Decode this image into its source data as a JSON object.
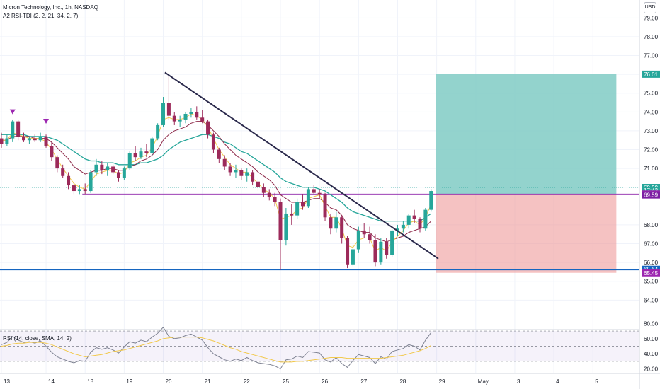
{
  "header": {
    "title": "Micron Technology, Inc., 1h, NASDAQ",
    "indicator": "A2 RSI-TDI (2, 2, 21, 34, 2, 7)",
    "currency": "USD"
  },
  "rsi_panel": {
    "label": "RSI (14, close, SMA, 14, 2)",
    "ticks": [
      "80.00",
      "60.00",
      "40.00",
      "20.00"
    ]
  },
  "price_tags": [
    {
      "text": "76.01",
      "value": 76.01,
      "color": "#26a69a"
    },
    {
      "text": "69.99",
      "value": 69.99,
      "color": "#26a69a"
    },
    {
      "text": "17:43",
      "value": 69.84,
      "color": "#26a69a"
    },
    {
      "text": "69.64",
      "value": 69.64,
      "color": "#9c27b0"
    },
    {
      "text": "69.59",
      "value": 69.59,
      "color": "#7b1fa2"
    },
    {
      "text": "65.64",
      "value": 65.64,
      "color": "#1565c0"
    },
    {
      "text": "65.45",
      "value": 65.45,
      "color": "#9c27b0"
    }
  ],
  "colors": {
    "up": "#26a69a",
    "down": "#9c2a5a",
    "ema_fast": "#f2c94c",
    "ema_mid": "#8e2a4a",
    "ema_slow": "#26a69a",
    "support": "#1565c0",
    "resistance": "#8e24aa",
    "trendline": "#2b2a4c",
    "target_zone": "#80cbc4",
    "stop_zone": "#ef9a9a",
    "rsi": "#7e8292",
    "rsi_ma": "#f2c94c",
    "signal": "#9c27b0"
  },
  "chart_data": {
    "type": "candlestick",
    "title": "Micron Technology, Inc., 1h, NASDAQ",
    "y_axis": {
      "ticks": [
        "79.00",
        "78.00",
        "77.00",
        "76.00",
        "75.00",
        "74.00",
        "73.00",
        "72.00",
        "71.00",
        "70.00",
        "68.00",
        "67.00",
        "66.00",
        "65.00",
        "64.00"
      ],
      "range": [
        63.4,
        79.2
      ]
    },
    "x_axis": {
      "labels": [
        "13",
        "14",
        "18",
        "19",
        "20",
        "21",
        "22",
        "25",
        "26",
        "27",
        "28",
        "29",
        "May",
        "3",
        "4",
        "5"
      ],
      "index_positions": [
        0,
        8,
        15,
        22,
        29,
        36,
        43,
        50,
        57,
        64,
        71,
        78,
        85,
        92,
        99,
        106
      ]
    },
    "candles": [
      {
        "o": 72.6,
        "h": 72.9,
        "l": 72.1,
        "c": 72.3
      },
      {
        "o": 72.3,
        "h": 72.8,
        "l": 72.2,
        "c": 72.6
      },
      {
        "o": 72.6,
        "h": 73.6,
        "l": 72.4,
        "c": 73.5
      },
      {
        "o": 73.5,
        "h": 73.6,
        "l": 72.5,
        "c": 72.7
      },
      {
        "o": 72.7,
        "h": 72.9,
        "l": 72.4,
        "c": 72.5
      },
      {
        "o": 72.5,
        "h": 72.7,
        "l": 72.3,
        "c": 72.6
      },
      {
        "o": 72.6,
        "h": 72.8,
        "l": 72.4,
        "c": 72.5
      },
      {
        "o": 72.5,
        "h": 72.9,
        "l": 72.4,
        "c": 72.7
      },
      {
        "o": 72.7,
        "h": 72.8,
        "l": 72.1,
        "c": 72.2
      },
      {
        "o": 72.2,
        "h": 72.4,
        "l": 71.4,
        "c": 71.6
      },
      {
        "o": 71.6,
        "h": 71.7,
        "l": 70.8,
        "c": 71.0
      },
      {
        "o": 71.0,
        "h": 71.2,
        "l": 70.5,
        "c": 70.6
      },
      {
        "o": 70.6,
        "h": 70.8,
        "l": 69.9,
        "c": 70.1
      },
      {
        "o": 70.1,
        "h": 70.3,
        "l": 69.6,
        "c": 69.8
      },
      {
        "o": 69.8,
        "h": 70.1,
        "l": 69.6,
        "c": 69.9
      },
      {
        "o": 69.9,
        "h": 70.2,
        "l": 69.6,
        "c": 69.8
      },
      {
        "o": 69.8,
        "h": 70.9,
        "l": 69.7,
        "c": 70.8
      },
      {
        "o": 70.8,
        "h": 71.5,
        "l": 70.6,
        "c": 71.2
      },
      {
        "o": 71.2,
        "h": 71.4,
        "l": 70.7,
        "c": 70.9
      },
      {
        "o": 70.9,
        "h": 71.3,
        "l": 70.6,
        "c": 71.1
      },
      {
        "o": 71.1,
        "h": 71.2,
        "l": 70.7,
        "c": 70.8
      },
      {
        "o": 70.8,
        "h": 70.9,
        "l": 70.3,
        "c": 70.5
      },
      {
        "o": 70.5,
        "h": 71.1,
        "l": 70.4,
        "c": 71.0
      },
      {
        "o": 71.0,
        "h": 71.9,
        "l": 70.9,
        "c": 71.8
      },
      {
        "o": 71.8,
        "h": 72.2,
        "l": 71.4,
        "c": 71.6
      },
      {
        "o": 71.6,
        "h": 72.1,
        "l": 71.5,
        "c": 71.9
      },
      {
        "o": 71.9,
        "h": 72.3,
        "l": 71.6,
        "c": 71.8
      },
      {
        "o": 71.8,
        "h": 72.7,
        "l": 71.7,
        "c": 72.6
      },
      {
        "o": 72.6,
        "h": 73.4,
        "l": 72.5,
        "c": 73.3
      },
      {
        "o": 73.3,
        "h": 74.8,
        "l": 73.2,
        "c": 74.5
      },
      {
        "o": 74.5,
        "h": 76.0,
        "l": 73.6,
        "c": 73.8
      },
      {
        "o": 73.8,
        "h": 74.0,
        "l": 73.3,
        "c": 73.5
      },
      {
        "o": 73.5,
        "h": 73.8,
        "l": 73.2,
        "c": 73.6
      },
      {
        "o": 73.6,
        "h": 74.0,
        "l": 73.4,
        "c": 73.9
      },
      {
        "o": 73.9,
        "h": 74.2,
        "l": 73.7,
        "c": 74.0
      },
      {
        "o": 74.0,
        "h": 74.3,
        "l": 73.6,
        "c": 73.7
      },
      {
        "o": 73.7,
        "h": 74.1,
        "l": 73.4,
        "c": 73.5
      },
      {
        "o": 73.5,
        "h": 73.6,
        "l": 72.6,
        "c": 72.8
      },
      {
        "o": 72.8,
        "h": 72.9,
        "l": 71.8,
        "c": 72.0
      },
      {
        "o": 72.0,
        "h": 72.1,
        "l": 71.3,
        "c": 71.5
      },
      {
        "o": 71.5,
        "h": 71.7,
        "l": 70.9,
        "c": 71.1
      },
      {
        "o": 71.1,
        "h": 71.3,
        "l": 70.6,
        "c": 70.8
      },
      {
        "o": 70.8,
        "h": 71.2,
        "l": 70.5,
        "c": 70.9
      },
      {
        "o": 70.9,
        "h": 71.0,
        "l": 70.4,
        "c": 70.6
      },
      {
        "o": 70.6,
        "h": 71.0,
        "l": 70.3,
        "c": 70.8
      },
      {
        "o": 70.8,
        "h": 70.9,
        "l": 70.1,
        "c": 70.3
      },
      {
        "o": 70.3,
        "h": 70.5,
        "l": 69.8,
        "c": 70.0
      },
      {
        "o": 70.0,
        "h": 70.2,
        "l": 69.5,
        "c": 69.7
      },
      {
        "o": 69.7,
        "h": 69.9,
        "l": 69.3,
        "c": 69.5
      },
      {
        "o": 69.5,
        "h": 69.7,
        "l": 69.0,
        "c": 69.2
      },
      {
        "o": 69.2,
        "h": 69.4,
        "l": 65.6,
        "c": 67.2
      },
      {
        "o": 67.2,
        "h": 68.9,
        "l": 66.9,
        "c": 68.6
      },
      {
        "o": 68.6,
        "h": 69.1,
        "l": 68.0,
        "c": 68.5
      },
      {
        "o": 68.5,
        "h": 69.4,
        "l": 68.3,
        "c": 69.2
      },
      {
        "o": 69.2,
        "h": 69.6,
        "l": 68.8,
        "c": 69.0
      },
      {
        "o": 69.0,
        "h": 70.0,
        "l": 68.9,
        "c": 69.9
      },
      {
        "o": 69.9,
        "h": 70.1,
        "l": 69.6,
        "c": 69.7
      },
      {
        "o": 69.7,
        "h": 69.9,
        "l": 69.4,
        "c": 69.6
      },
      {
        "o": 69.6,
        "h": 69.7,
        "l": 68.2,
        "c": 68.4
      },
      {
        "o": 68.4,
        "h": 68.6,
        "l": 67.5,
        "c": 67.8
      },
      {
        "o": 67.8,
        "h": 68.7,
        "l": 67.6,
        "c": 68.4
      },
      {
        "o": 68.4,
        "h": 68.5,
        "l": 67.0,
        "c": 67.3
      },
      {
        "o": 67.3,
        "h": 67.4,
        "l": 65.7,
        "c": 65.9
      },
      {
        "o": 65.9,
        "h": 66.9,
        "l": 65.8,
        "c": 66.7
      },
      {
        "o": 66.7,
        "h": 67.9,
        "l": 66.5,
        "c": 67.7
      },
      {
        "o": 67.7,
        "h": 68.1,
        "l": 67.3,
        "c": 67.5
      },
      {
        "o": 67.5,
        "h": 67.9,
        "l": 67.0,
        "c": 67.2
      },
      {
        "o": 67.2,
        "h": 67.5,
        "l": 65.8,
        "c": 66.0
      },
      {
        "o": 66.0,
        "h": 67.3,
        "l": 65.9,
        "c": 67.1
      },
      {
        "o": 67.1,
        "h": 67.3,
        "l": 66.2,
        "c": 66.4
      },
      {
        "o": 66.4,
        "h": 67.8,
        "l": 66.3,
        "c": 67.7
      },
      {
        "o": 67.7,
        "h": 68.0,
        "l": 67.4,
        "c": 67.8
      },
      {
        "o": 67.8,
        "h": 68.2,
        "l": 67.6,
        "c": 68.0
      },
      {
        "o": 68.0,
        "h": 68.6,
        "l": 67.8,
        "c": 68.5
      },
      {
        "o": 68.5,
        "h": 68.8,
        "l": 68.1,
        "c": 68.3
      },
      {
        "o": 68.3,
        "h": 68.4,
        "l": 67.6,
        "c": 67.8
      },
      {
        "o": 67.8,
        "h": 68.9,
        "l": 67.7,
        "c": 68.8
      },
      {
        "o": 68.8,
        "h": 69.9,
        "l": 68.7,
        "c": 69.8
      }
    ],
    "ema_fast": [
      72.5,
      72.5,
      72.9,
      72.8,
      72.7,
      72.6,
      72.6,
      72.6,
      72.4,
      72.0,
      71.5,
      71.0,
      70.6,
      70.2,
      70.0,
      69.9,
      70.3,
      70.7,
      70.8,
      70.9,
      70.9,
      70.7,
      70.8,
      71.3,
      71.4,
      71.6,
      71.7,
      72.1,
      72.7,
      73.6,
      73.7,
      73.6,
      73.6,
      73.7,
      73.9,
      73.8,
      73.6,
      73.2,
      72.6,
      72.0,
      71.6,
      71.2,
      71.0,
      70.8,
      70.8,
      70.5,
      70.2,
      69.9,
      69.7,
      69.4,
      68.3,
      68.4,
      68.5,
      68.8,
      68.9,
      69.4,
      69.5,
      69.6,
      69.0,
      68.4,
      68.4,
      67.8,
      66.9,
      66.8,
      67.2,
      67.3,
      67.3,
      66.6,
      66.8,
      66.6,
      67.1,
      67.4,
      67.7,
      68.1,
      68.2,
      68.0,
      68.4,
      69.1
    ],
    "ema_mid": [
      72.5,
      72.5,
      72.7,
      72.7,
      72.7,
      72.7,
      72.6,
      72.6,
      72.6,
      72.4,
      72.1,
      71.8,
      71.5,
      71.1,
      70.9,
      70.7,
      70.8,
      70.9,
      70.9,
      71.0,
      71.0,
      70.9,
      70.9,
      71.1,
      71.2,
      71.4,
      71.5,
      71.7,
      72.0,
      72.5,
      72.8,
      73.0,
      73.1,
      73.2,
      73.4,
      73.5,
      73.5,
      73.3,
      73.0,
      72.7,
      72.3,
      72.0,
      71.7,
      71.5,
      71.3,
      71.1,
      70.8,
      70.6,
      70.4,
      70.1,
      69.6,
      69.4,
      69.2,
      69.2,
      69.2,
      69.3,
      69.4,
      69.4,
      69.2,
      68.9,
      68.8,
      68.5,
      68.0,
      67.8,
      67.7,
      67.6,
      67.6,
      67.3,
      67.2,
      67.1,
      67.2,
      67.3,
      67.4,
      67.6,
      67.7,
      67.8,
      67.9,
      68.2
    ],
    "ema_slow": [
      72.8,
      72.8,
      72.8,
      72.8,
      72.8,
      72.7,
      72.7,
      72.7,
      72.7,
      72.6,
      72.5,
      72.3,
      72.1,
      71.9,
      71.7,
      71.5,
      71.4,
      71.4,
      71.3,
      71.3,
      71.3,
      71.2,
      71.2,
      71.2,
      71.2,
      71.3,
      71.3,
      71.4,
      71.5,
      71.7,
      72.0,
      72.2,
      72.4,
      72.5,
      72.6,
      72.7,
      72.8,
      72.8,
      72.7,
      72.6,
      72.4,
      72.3,
      72.1,
      71.9,
      71.8,
      71.6,
      71.4,
      71.2,
      71.0,
      70.8,
      70.5,
      70.3,
      70.2,
      70.1,
      70.0,
      70.0,
      70.0,
      69.9,
      69.8,
      69.6,
      69.4,
      69.2,
      68.9,
      68.7,
      68.6,
      68.5,
      68.4,
      68.3,
      68.2,
      68.2,
      68.2,
      68.2,
      68.2,
      68.2,
      68.2,
      68.2,
      68.4,
      68.6
    ],
    "rsi": [
      52,
      55,
      63,
      58,
      55,
      56,
      54,
      57,
      50,
      42,
      36,
      33,
      30,
      28,
      31,
      30,
      42,
      48,
      46,
      48,
      45,
      41,
      49,
      56,
      54,
      58,
      56,
      62,
      67,
      75,
      63,
      60,
      61,
      64,
      66,
      62,
      58,
      48,
      40,
      36,
      32,
      30,
      33,
      31,
      35,
      31,
      28,
      27,
      26,
      24,
      20,
      32,
      33,
      37,
      35,
      43,
      42,
      41,
      32,
      29,
      35,
      27,
      22,
      31,
      39,
      37,
      35,
      27,
      36,
      33,
      43,
      45,
      47,
      52,
      50,
      45,
      58,
      68
    ],
    "rsi_ma": [
      50,
      51,
      53,
      54,
      54,
      55,
      55,
      55,
      54,
      52,
      49,
      46,
      43,
      40,
      38,
      36,
      37,
      38,
      39,
      41,
      43,
      44,
      45,
      47,
      49,
      51,
      53,
      55,
      57,
      60,
      61,
      62,
      62,
      62,
      62,
      62,
      61,
      59,
      57,
      54,
      51,
      48,
      46,
      43,
      41,
      39,
      37,
      35,
      33,
      31,
      29,
      29,
      29,
      30,
      30,
      31,
      32,
      33,
      34,
      35,
      35,
      35,
      34,
      34,
      34,
      34,
      34,
      34,
      34,
      35,
      36,
      37,
      38,
      40,
      42,
      44,
      47,
      51
    ],
    "levels": {
      "support": 65.62,
      "resistance": 69.62,
      "current": 69.99
    },
    "trendline": {
      "from": {
        "i": 29.3,
        "price": 76.1
      },
      "to": {
        "i": 78.3,
        "price": 66.2
      }
    },
    "position": {
      "start_index": 77.8,
      "end_index": 110.2,
      "entry": 69.62,
      "target": 76.01,
      "stop": 65.45
    },
    "sell_signals": [
      {
        "i": 2,
        "price": 73.8
      },
      {
        "i": 8,
        "price": 73.3
      }
    ],
    "rsi_levels": [
      70,
      50,
      30
    ]
  }
}
